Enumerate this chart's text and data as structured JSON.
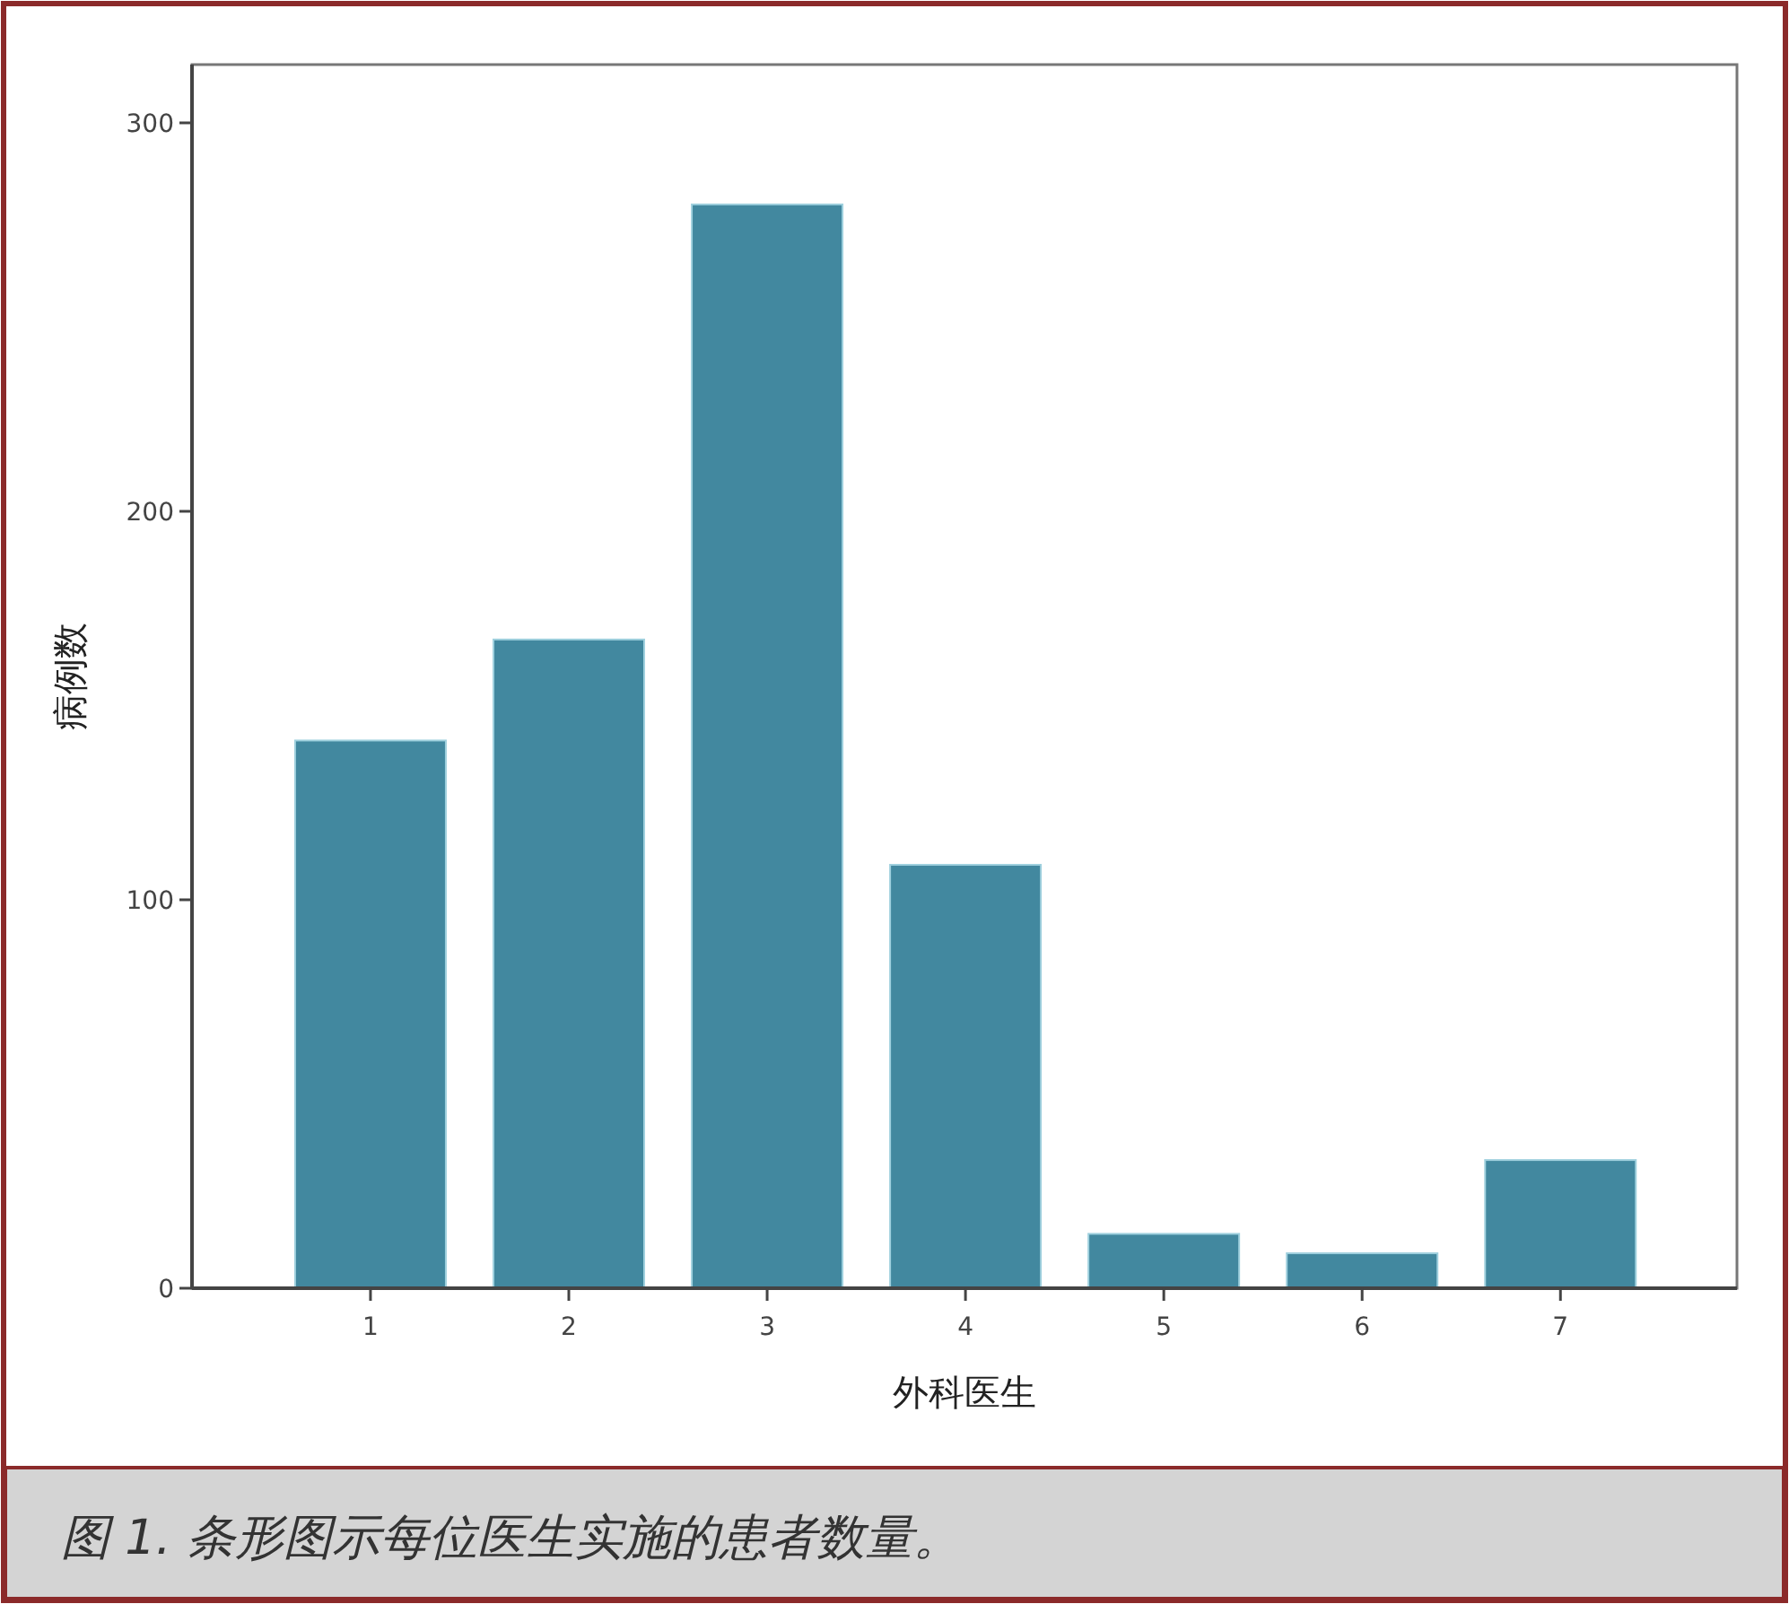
{
  "chart_data": {
    "type": "bar",
    "xlabel": "外科医生",
    "ylabel": "病例数",
    "categories": [
      "1",
      "2",
      "3",
      "4",
      "5",
      "6",
      "7"
    ],
    "values": [
      141,
      167,
      279,
      109,
      14,
      9,
      33
    ],
    "color": "#42889f",
    "ylim": [
      0,
      315
    ],
    "yticks": [
      0,
      100,
      200,
      300
    ],
    "grid": false,
    "annotations": [
      "图 1. 条形图示每位医生实施的患者数量。"
    ]
  }
}
